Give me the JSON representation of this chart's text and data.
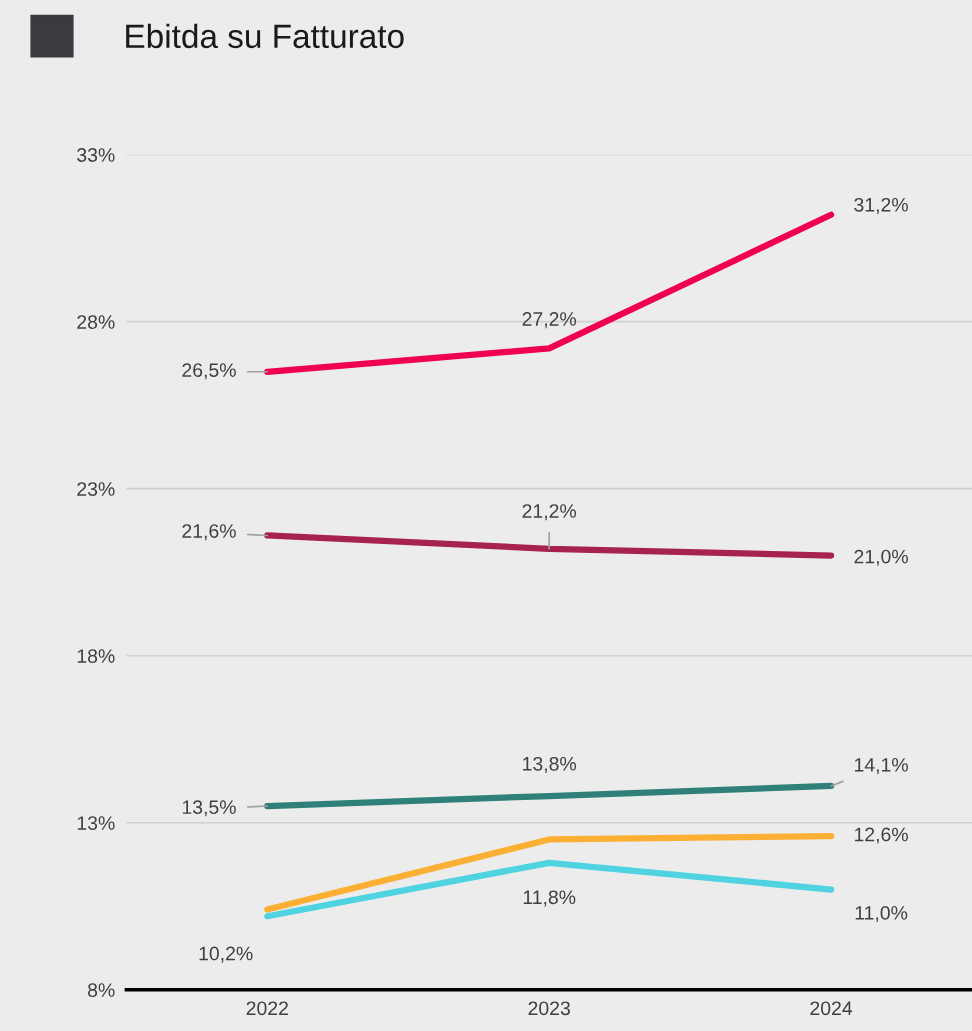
{
  "chart_data": {
    "type": "line",
    "title": "Ebitda su Fatturato",
    "categories": [
      "2022",
      "2023",
      "2024"
    ],
    "series": [
      {
        "color": "#ef0050",
        "values": [
          26.5,
          27.2,
          31.2
        ],
        "value_labels": [
          "26,5%",
          "27,2%",
          "31,2%"
        ]
      },
      {
        "color": "#a6224f",
        "values": [
          21.6,
          21.2,
          21.0
        ],
        "value_labels": [
          "21,6%",
          "21,2%",
          "21,0%"
        ]
      },
      {
        "color": "#2e8079",
        "values": [
          13.5,
          13.8,
          14.1
        ],
        "value_labels": [
          "13,5%",
          "13,8%",
          "14,1%"
        ]
      },
      {
        "color": "#fbb034",
        "values": [
          10.4,
          12.5,
          12.6
        ],
        "value_labels": [
          null,
          null,
          "12,6%"
        ]
      },
      {
        "color": "#4fd3e0",
        "values": [
          10.2,
          11.8,
          11.0
        ],
        "value_labels": [
          "10,2%",
          "11,8%",
          "11,0%"
        ]
      }
    ],
    "ylim": [
      8,
      33
    ],
    "yticks": [
      {
        "value": 8,
        "label": "8%"
      },
      {
        "value": 13,
        "label": "13%"
      },
      {
        "value": 18,
        "label": "18%"
      },
      {
        "value": 23,
        "label": "23%"
      },
      {
        "value": 28,
        "label": "28%"
      },
      {
        "value": 33,
        "label": "33%"
      }
    ],
    "grid": "y",
    "legend": false,
    "marker": "none",
    "line_style": "solid"
  }
}
